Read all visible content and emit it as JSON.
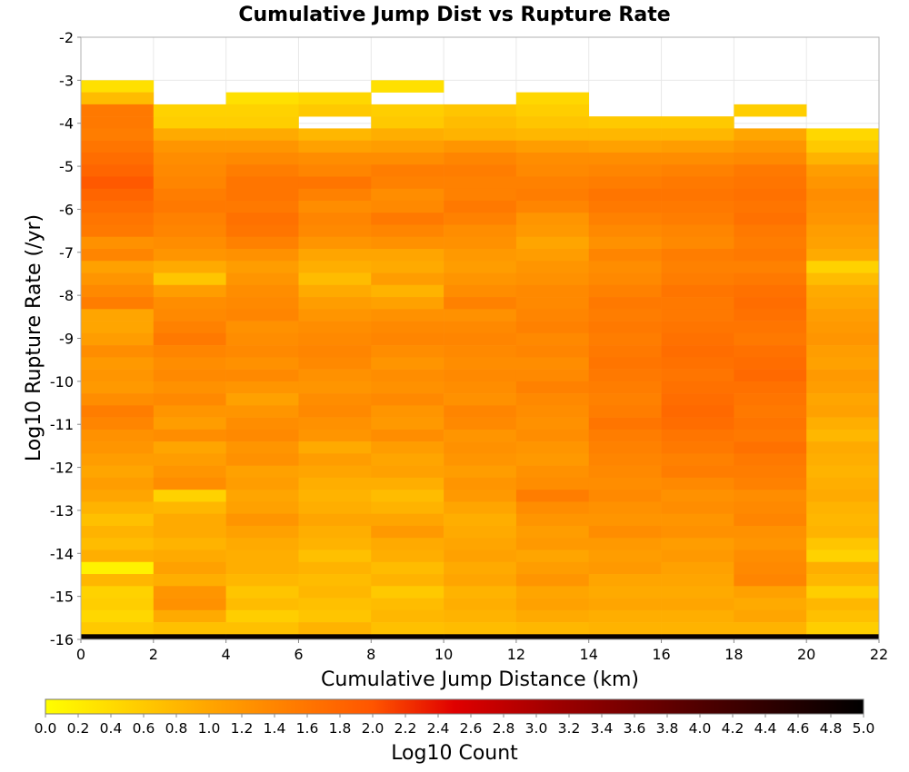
{
  "chart_data": {
    "type": "heatmap",
    "title": "Cumulative Jump Dist vs Rupture Rate",
    "xlabel": "Cumulative Jump Distance (km)",
    "ylabel": "Log10 Rupture Rate (/yr)",
    "xlim": [
      0,
      22
    ],
    "ylim": [
      -16,
      -2
    ],
    "x_ticks": [
      "0",
      "2",
      "4",
      "6",
      "8",
      "10",
      "12",
      "14",
      "16",
      "18",
      "20",
      "22"
    ],
    "y_ticks": [
      "-2",
      "-3",
      "-4",
      "-5",
      "-6",
      "-7",
      "-8",
      "-9",
      "-10",
      "-11",
      "-12",
      "-13",
      "-14",
      "-15",
      "-16"
    ],
    "grid": true,
    "x_bin_width": 2,
    "y_bin_height": 0.28,
    "x_bins_start": [
      0,
      2,
      4,
      6,
      8,
      10,
      12,
      14,
      16,
      18,
      20
    ],
    "y_bins_top": [
      -3.0,
      -3.28,
      -3.56,
      -3.84,
      -4.12,
      -4.4,
      -4.68,
      -4.96,
      -5.24,
      -5.52,
      -5.8,
      -6.08,
      -6.36,
      -6.64,
      -6.92,
      -7.2,
      -7.48,
      -7.76,
      -8.04,
      -8.32,
      -8.6,
      -8.88,
      -9.16,
      -9.44,
      -9.72,
      -10.0,
      -10.28,
      -10.56,
      -10.84,
      -11.12,
      -11.4,
      -11.68,
      -11.96,
      -12.24,
      -12.52,
      -12.8,
      -13.08,
      -13.36,
      -13.64,
      -13.92,
      -14.2,
      -14.48,
      -14.76,
      -15.04,
      -15.32,
      -15.6
    ],
    "values_by_x_bin": [
      [
        0.35,
        0.75,
        1.55,
        1.55,
        1.5,
        1.6,
        1.7,
        1.8,
        1.95,
        1.8,
        1.7,
        1.6,
        1.55,
        1.25,
        1.4,
        1.05,
        1.2,
        1.35,
        1.5,
        1.0,
        1.0,
        1.1,
        1.3,
        1.15,
        1.2,
        1.15,
        1.3,
        1.5,
        1.4,
        1.25,
        1.2,
        1.1,
        1.0,
        1.1,
        1.0,
        0.85,
        0.7,
        0.85,
        0.75,
        0.9,
        0.15,
        0.8,
        0.5,
        0.55,
        0.45,
        0.6
      ],
      [
        null,
        null,
        0.5,
        0.55,
        0.95,
        1.2,
        1.3,
        1.35,
        1.4,
        1.5,
        1.55,
        1.45,
        1.4,
        1.3,
        1.2,
        0.95,
        0.65,
        1.1,
        1.3,
        1.35,
        1.45,
        1.55,
        1.4,
        1.3,
        1.35,
        1.25,
        1.35,
        1.2,
        1.1,
        1.3,
        1.0,
        1.1,
        1.2,
        1.3,
        0.5,
        0.8,
        0.95,
        0.95,
        0.85,
        0.95,
        1.05,
        0.9,
        1.2,
        1.25,
        0.95,
        0.7
      ],
      [
        null,
        0.35,
        0.5,
        0.55,
        0.95,
        1.2,
        1.35,
        1.5,
        1.6,
        1.6,
        1.55,
        1.65,
        1.6,
        1.45,
        1.25,
        1.1,
        1.2,
        1.3,
        1.35,
        1.4,
        1.25,
        1.3,
        1.35,
        1.25,
        1.35,
        1.2,
        1.05,
        1.2,
        1.3,
        1.35,
        1.2,
        1.25,
        1.05,
        1.1,
        1.0,
        1.05,
        1.2,
        1.05,
        0.95,
        0.9,
        0.9,
        0.8,
        0.65,
        0.75,
        0.55,
        0.7
      ],
      [
        null,
        0.45,
        0.6,
        null,
        0.8,
        1.05,
        1.3,
        1.4,
        1.6,
        1.45,
        1.3,
        1.4,
        1.35,
        1.2,
        1.0,
        0.9,
        0.75,
        0.95,
        1.1,
        1.2,
        1.3,
        1.35,
        1.4,
        1.35,
        1.25,
        1.2,
        1.3,
        1.35,
        1.25,
        1.2,
        0.95,
        1.1,
        1.0,
        0.9,
        0.85,
        0.9,
        1.0,
        0.9,
        0.85,
        0.7,
        0.85,
        0.75,
        0.8,
        0.7,
        0.65,
        0.85
      ],
      [
        0.35,
        null,
        0.55,
        0.6,
        0.9,
        1.1,
        1.3,
        1.5,
        1.45,
        1.3,
        1.35,
        1.55,
        1.4,
        1.25,
        1.0,
        0.95,
        1.1,
        0.85,
        1.05,
        1.25,
        1.35,
        1.4,
        1.3,
        1.2,
        1.3,
        1.25,
        1.35,
        1.2,
        1.15,
        1.3,
        1.1,
        1.0,
        1.05,
        0.9,
        0.75,
        0.85,
        1.0,
        1.15,
        0.95,
        0.9,
        0.75,
        0.85,
        0.6,
        0.75,
        0.8,
        0.7
      ],
      [
        null,
        null,
        0.65,
        0.75,
        0.85,
        1.2,
        1.4,
        1.5,
        1.45,
        1.45,
        1.55,
        1.45,
        1.3,
        1.25,
        1.15,
        1.1,
        1.2,
        1.3,
        1.45,
        1.25,
        1.35,
        1.4,
        1.35,
        1.3,
        1.35,
        1.3,
        1.25,
        1.4,
        1.35,
        1.2,
        1.25,
        1.2,
        1.1,
        1.2,
        1.15,
        1.0,
        0.9,
        0.95,
        1.0,
        1.05,
        0.95,
        1.0,
        0.85,
        0.9,
        0.85,
        0.75
      ],
      [
        null,
        0.45,
        0.55,
        0.65,
        0.8,
        1.1,
        1.3,
        1.35,
        1.45,
        1.5,
        1.4,
        1.2,
        1.15,
        1.0,
        1.1,
        1.2,
        1.25,
        1.35,
        1.35,
        1.4,
        1.45,
        1.35,
        1.4,
        1.3,
        1.35,
        1.45,
        1.35,
        1.3,
        1.25,
        1.3,
        1.2,
        1.15,
        1.25,
        1.3,
        1.5,
        1.3,
        1.2,
        1.1,
        1.15,
        1.0,
        1.1,
        1.2,
        1.0,
        1.05,
        0.95,
        0.8
      ],
      [
        null,
        null,
        null,
        0.6,
        0.8,
        1.05,
        1.3,
        1.4,
        1.5,
        1.6,
        1.55,
        1.45,
        1.35,
        1.25,
        1.4,
        1.3,
        1.35,
        1.45,
        1.55,
        1.5,
        1.55,
        1.5,
        1.55,
        1.6,
        1.55,
        1.5,
        1.45,
        1.5,
        1.6,
        1.5,
        1.45,
        1.4,
        1.35,
        1.3,
        1.35,
        1.25,
        1.2,
        1.3,
        1.15,
        1.1,
        1.15,
        1.0,
        0.95,
        1.0,
        0.9,
        0.85
      ],
      [
        null,
        null,
        null,
        0.6,
        0.8,
        1.1,
        1.3,
        1.45,
        1.55,
        1.6,
        1.55,
        1.5,
        1.4,
        1.35,
        1.5,
        1.45,
        1.5,
        1.6,
        1.55,
        1.55,
        1.6,
        1.65,
        1.7,
        1.65,
        1.6,
        1.65,
        1.7,
        1.75,
        1.7,
        1.6,
        1.55,
        1.45,
        1.5,
        1.35,
        1.25,
        1.3,
        1.2,
        1.25,
        1.1,
        1.15,
        1.05,
        1.0,
        0.95,
        1.0,
        0.9,
        0.85
      ],
      [
        null,
        null,
        0.55,
        null,
        1.0,
        1.2,
        1.35,
        1.55,
        1.6,
        1.65,
        1.6,
        1.65,
        1.55,
        1.5,
        1.55,
        1.45,
        1.55,
        1.65,
        1.7,
        1.65,
        1.6,
        1.55,
        1.65,
        1.7,
        1.75,
        1.65,
        1.6,
        1.55,
        1.6,
        1.55,
        1.65,
        1.55,
        1.5,
        1.45,
        1.3,
        1.35,
        1.4,
        1.25,
        1.2,
        1.3,
        1.35,
        1.4,
        1.05,
        0.95,
        1.0,
        0.85
      ],
      [
        null,
        null,
        null,
        null,
        0.45,
        0.6,
        0.85,
        1.1,
        1.2,
        1.3,
        1.25,
        1.2,
        1.1,
        1.05,
        0.95,
        0.5,
        0.75,
        0.95,
        1.0,
        1.1,
        1.15,
        1.2,
        1.1,
        1.05,
        1.15,
        1.1,
        1.0,
        1.05,
        0.9,
        0.8,
        0.95,
        0.9,
        0.85,
        0.9,
        0.95,
        0.85,
        0.8,
        0.85,
        0.65,
        0.5,
        0.9,
        0.8,
        0.55,
        0.8,
        0.7,
        0.55
      ]
    ],
    "colorbar": {
      "label": "Log10 Count",
      "range": [
        0,
        5
      ],
      "ticks": [
        "0.0",
        "0.2",
        "0.4",
        "0.6",
        "0.8",
        "1.0",
        "1.2",
        "1.4",
        "1.6",
        "1.8",
        "2.0",
        "2.2",
        "2.4",
        "2.6",
        "2.8",
        "3.0",
        "3.2",
        "3.4",
        "3.6",
        "3.8",
        "4.0",
        "4.2",
        "4.4",
        "4.6",
        "4.8",
        "5.0"
      ],
      "colors": [
        "#ffff00",
        "#ffa500",
        "#ff5500",
        "#e00000",
        "#a00000",
        "#500000",
        "#000000"
      ],
      "color_stops": [
        0,
        0.2,
        0.4,
        0.5,
        0.62,
        0.8,
        1.0
      ]
    }
  }
}
